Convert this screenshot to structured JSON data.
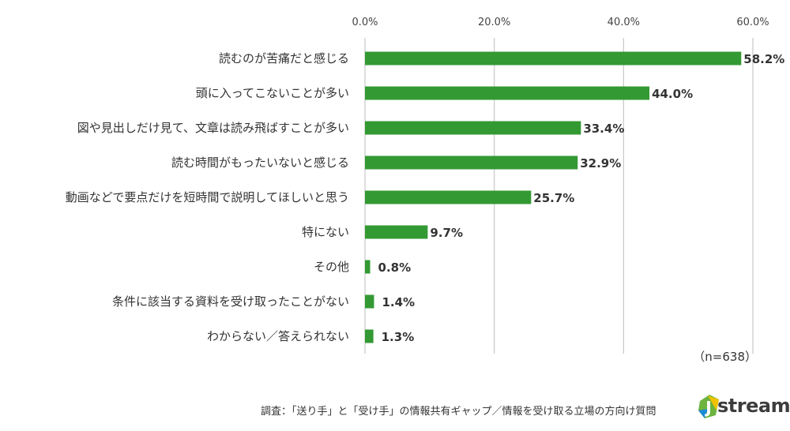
{
  "chart_data": {
    "type": "bar",
    "orientation": "horizontal",
    "categories": [
      "読むのが苦痛だと感じる",
      "頭に入ってこないことが多い",
      "図や見出しだけ見て、文章は読み飛ばすことが多い",
      "読む時間がもったいないと感じる",
      "動画などで要点だけを短時間で説明してほしいと思う",
      "特にない",
      "その他",
      "条件に該当する資料を受け取ったことがない",
      "わからない／答えられない"
    ],
    "values": [
      58.2,
      44.0,
      33.4,
      32.9,
      25.7,
      9.7,
      0.8,
      1.4,
      1.3
    ],
    "value_labels": [
      "58.2%",
      "44.0%",
      "33.4%",
      "32.9%",
      "25.7%",
      "9.7%",
      "0.8%",
      "1.4%",
      "1.3%"
    ],
    "xticks": [
      0,
      20,
      40,
      60
    ],
    "xtick_labels": [
      "0.0%",
      "20.0%",
      "40.0%",
      "60.0%"
    ],
    "xlim": [
      0,
      60
    ],
    "grid": true,
    "axis_position": "top",
    "bar_color": "#339933",
    "note": "（n=638）"
  },
  "footer": {
    "source": "調査：「送り手」と「受け手」の情報共有ギャップ／情報を受け取る立場の方向け質問"
  },
  "logo": {
    "letter": "J",
    "text": "stream",
    "colors": {
      "green": "#6db33f",
      "yellow": "#f2c200",
      "blue": "#1c8ad4"
    }
  }
}
